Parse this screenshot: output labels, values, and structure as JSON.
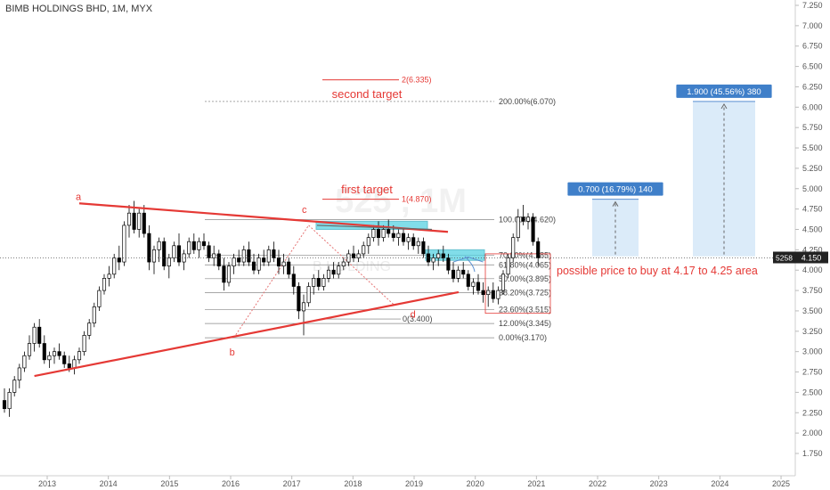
{
  "header": {
    "title": "BIMB HOLDINGS BHD, 1M, MYX"
  },
  "watermark": {
    "main": "525 , 1M",
    "sub": "B HOLDING"
  },
  "colors": {
    "up": "#ffffff",
    "down": "#000000",
    "trendline": "#e53935",
    "fib_line": "#888888",
    "zone_fill": "#4dd0e1",
    "projection_fill": "#cfe4f7",
    "projection_label_bg": "#3f7fc9",
    "price_label_bg": "#222222"
  },
  "price_label": {
    "ticker": "5258",
    "value": "4.150"
  },
  "chart_data": {
    "type": "candlestick",
    "title": "BIMB HOLDINGS BHD, 1M, MYX",
    "x_ticks": [
      "2013",
      "2014",
      "2015",
      "2016",
      "2017",
      "2018",
      "2019",
      "2020",
      "2021",
      "2022",
      "2023",
      "2024",
      "2025"
    ],
    "y_ticks": [
      "1.750",
      "2.000",
      "2.250",
      "2.500",
      "2.750",
      "3.000",
      "3.250",
      "3.500",
      "3.750",
      "4.000",
      "4.250",
      "4.500",
      "4.750",
      "5.000",
      "5.250",
      "5.500",
      "5.750",
      "6.000",
      "6.250",
      "6.500",
      "6.750",
      "7.000",
      "7.250"
    ],
    "ylim": [
      1.5,
      7.3
    ],
    "grid": false,
    "candles": [
      [
        2.4,
        2.55,
        2.25,
        2.3
      ],
      [
        2.3,
        2.55,
        2.2,
        2.5
      ],
      [
        2.5,
        2.7,
        2.45,
        2.65
      ],
      [
        2.65,
        2.85,
        2.55,
        2.8
      ],
      [
        2.8,
        3.0,
        2.75,
        2.95
      ],
      [
        2.95,
        3.2,
        2.9,
        3.1
      ],
      [
        3.1,
        3.35,
        3.0,
        3.3
      ],
      [
        3.3,
        3.4,
        3.05,
        3.1
      ],
      [
        3.1,
        3.2,
        2.85,
        2.9
      ],
      [
        2.9,
        3.0,
        2.8,
        2.95
      ],
      [
        2.95,
        3.05,
        2.85,
        3.0
      ],
      [
        3.0,
        3.1,
        2.9,
        2.95
      ],
      [
        2.95,
        3.0,
        2.8,
        2.85
      ],
      [
        2.85,
        2.95,
        2.75,
        2.8
      ],
      [
        2.8,
        2.95,
        2.72,
        2.9
      ],
      [
        2.9,
        3.05,
        2.85,
        3.0
      ],
      [
        3.0,
        3.25,
        2.95,
        3.2
      ],
      [
        3.2,
        3.4,
        3.15,
        3.35
      ],
      [
        3.35,
        3.6,
        3.3,
        3.55
      ],
      [
        3.55,
        3.8,
        3.5,
        3.75
      ],
      [
        3.75,
        3.95,
        3.7,
        3.9
      ],
      [
        3.9,
        4.05,
        3.8,
        3.95
      ],
      [
        3.95,
        4.2,
        3.9,
        4.15
      ],
      [
        4.15,
        4.3,
        4.0,
        4.1
      ],
      [
        4.1,
        4.6,
        4.05,
        4.55
      ],
      [
        4.55,
        4.8,
        4.4,
        4.7
      ],
      [
        4.7,
        4.85,
        4.45,
        4.5
      ],
      [
        4.5,
        4.75,
        4.4,
        4.7
      ],
      [
        4.7,
        4.8,
        4.4,
        4.45
      ],
      [
        4.45,
        4.55,
        4.0,
        4.1
      ],
      [
        4.1,
        4.3,
        3.95,
        4.25
      ],
      [
        4.25,
        4.4,
        4.1,
        4.35
      ],
      [
        4.35,
        4.4,
        4.0,
        4.05
      ],
      [
        4.05,
        4.2,
        3.9,
        4.15
      ],
      [
        4.15,
        4.35,
        4.1,
        4.3
      ],
      [
        4.3,
        4.45,
        4.05,
        4.1
      ],
      [
        4.1,
        4.25,
        4.0,
        4.2
      ],
      [
        4.2,
        4.4,
        4.15,
        4.35
      ],
      [
        4.35,
        4.45,
        4.2,
        4.25
      ],
      [
        4.25,
        4.4,
        4.15,
        4.35
      ],
      [
        4.35,
        4.45,
        4.25,
        4.3
      ],
      [
        4.3,
        4.35,
        4.1,
        4.15
      ],
      [
        4.15,
        4.3,
        4.05,
        4.2
      ],
      [
        4.2,
        4.25,
        4.0,
        4.05
      ],
      [
        4.05,
        4.15,
        3.75,
        3.85
      ],
      [
        3.85,
        4.1,
        3.8,
        4.05
      ],
      [
        4.05,
        4.2,
        3.95,
        4.15
      ],
      [
        4.15,
        4.25,
        4.05,
        4.1
      ],
      [
        4.1,
        4.3,
        4.05,
        4.25
      ],
      [
        4.25,
        4.35,
        4.05,
        4.1
      ],
      [
        4.1,
        4.2,
        3.95,
        4.0
      ],
      [
        4.0,
        4.2,
        3.95,
        4.15
      ],
      [
        4.15,
        4.25,
        4.05,
        4.1
      ],
      [
        4.1,
        4.3,
        4.05,
        4.25
      ],
      [
        4.25,
        4.35,
        4.1,
        4.15
      ],
      [
        4.15,
        4.25,
        3.95,
        4.05
      ],
      [
        4.05,
        4.2,
        3.95,
        4.1
      ],
      [
        4.1,
        4.15,
        3.9,
        3.95
      ],
      [
        3.95,
        4.05,
        3.7,
        3.8
      ],
      [
        3.8,
        3.85,
        3.4,
        3.5
      ],
      [
        3.5,
        3.7,
        3.2,
        3.6
      ],
      [
        3.6,
        3.85,
        3.55,
        3.8
      ],
      [
        3.8,
        3.95,
        3.7,
        3.9
      ],
      [
        3.9,
        4.0,
        3.75,
        3.8
      ],
      [
        3.8,
        3.95,
        3.75,
        3.9
      ],
      [
        3.9,
        4.05,
        3.85,
        4.0
      ],
      [
        4.0,
        4.1,
        3.9,
        3.95
      ],
      [
        3.95,
        4.1,
        3.9,
        4.05
      ],
      [
        4.05,
        4.15,
        4.0,
        4.1
      ],
      [
        4.1,
        4.25,
        4.05,
        4.2
      ],
      [
        4.2,
        4.3,
        4.1,
        4.15
      ],
      [
        4.15,
        4.25,
        4.1,
        4.2
      ],
      [
        4.2,
        4.35,
        4.15,
        4.3
      ],
      [
        4.3,
        4.45,
        4.2,
        4.4
      ],
      [
        4.4,
        4.55,
        4.35,
        4.5
      ],
      [
        4.5,
        4.6,
        4.3,
        4.4
      ],
      [
        4.4,
        4.55,
        4.35,
        4.5
      ],
      [
        4.5,
        4.62,
        4.4,
        4.45
      ],
      [
        4.45,
        4.55,
        4.35,
        4.4
      ],
      [
        4.4,
        4.5,
        4.3,
        4.45
      ],
      [
        4.45,
        4.5,
        4.3,
        4.35
      ],
      [
        4.35,
        4.45,
        4.25,
        4.4
      ],
      [
        4.4,
        4.45,
        4.25,
        4.3
      ],
      [
        4.3,
        4.4,
        4.2,
        4.35
      ],
      [
        4.35,
        4.4,
        4.15,
        4.2
      ],
      [
        4.2,
        4.3,
        4.05,
        4.1
      ],
      [
        4.1,
        4.2,
        4.0,
        4.15
      ],
      [
        4.15,
        4.25,
        4.05,
        4.2
      ],
      [
        4.2,
        4.3,
        4.1,
        4.15
      ],
      [
        4.15,
        4.2,
        3.95,
        4.0
      ],
      [
        4.0,
        4.1,
        3.85,
        3.9
      ],
      [
        3.9,
        4.05,
        3.85,
        4.0
      ],
      [
        4.0,
        4.1,
        3.9,
        3.95
      ],
      [
        3.95,
        4.0,
        3.75,
        3.8
      ],
      [
        3.8,
        3.9,
        3.7,
        3.85
      ],
      [
        3.85,
        3.95,
        3.7,
        3.75
      ],
      [
        3.75,
        3.85,
        3.6,
        3.7
      ],
      [
        3.7,
        3.8,
        3.55,
        3.75
      ],
      [
        3.75,
        3.85,
        3.6,
        3.65
      ],
      [
        3.65,
        3.8,
        3.58,
        3.75
      ],
      [
        3.75,
        4.0,
        3.7,
        3.95
      ],
      [
        3.95,
        4.2,
        3.9,
        4.15
      ],
      [
        4.15,
        4.45,
        4.1,
        4.4
      ],
      [
        4.4,
        4.75,
        4.35,
        4.65
      ],
      [
        4.65,
        4.8,
        4.55,
        4.6
      ],
      [
        4.6,
        4.7,
        4.5,
        4.65
      ],
      [
        4.65,
        4.7,
        4.3,
        4.35
      ],
      [
        4.35,
        4.4,
        4.05,
        4.15
      ]
    ],
    "fib_levels": [
      {
        "label": "200.00%(6.070)",
        "price": 6.07
      },
      {
        "label": "100.00%(4.620)",
        "price": 4.62
      },
      {
        "label": "70.00%(4.185)",
        "price": 4.185
      },
      {
        "label": "61.80%(4.065)",
        "price": 4.065
      },
      {
        "label": "50.00%(3.895)",
        "price": 3.895
      },
      {
        "label": "38.20%(3.725)",
        "price": 3.725
      },
      {
        "label": "23.60%(3.515)",
        "price": 3.515
      },
      {
        "label": "12.00%(3.345)",
        "price": 3.345
      },
      {
        "label": "0.00%(3.170)",
        "price": 3.17
      }
    ],
    "targets": [
      {
        "label": "2(6.335)",
        "price": 6.335,
        "caption": "second target"
      },
      {
        "label": "1(4.870)",
        "price": 4.87,
        "caption": "first target"
      }
    ],
    "origin_label": {
      "label": "0(3.400)",
      "price": 3.4
    },
    "wave_labels": [
      "a",
      "b",
      "c",
      "d"
    ],
    "projections": [
      {
        "label": "0.700 (16.79%) 140",
        "from": 4.17,
        "to": 4.87
      },
      {
        "label": "1.900 (45.56%) 380",
        "from": 4.17,
        "to": 6.07
      }
    ],
    "note": "possible price to buy at 4.17 to 4.25 area"
  }
}
